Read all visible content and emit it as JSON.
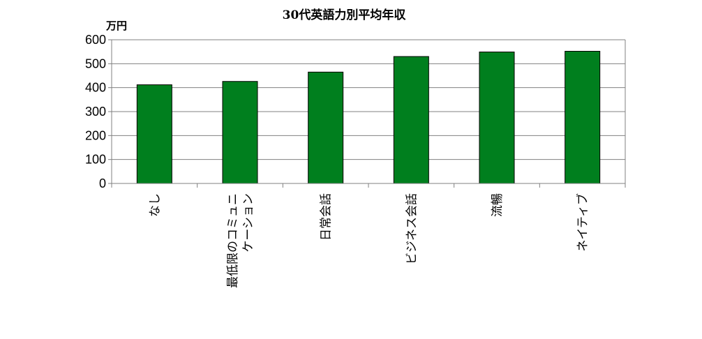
{
  "chart_data": {
    "type": "bar",
    "title": "30代英語力別平均年収",
    "unit_label": "万円",
    "categories": [
      "なし",
      "最低限のコミュニケーション",
      "日常会話",
      "ビジネス会話",
      "流暢",
      "ネイティブ"
    ],
    "category_lines": [
      [
        "なし"
      ],
      [
        "最低限のコミュニ",
        "ケーション"
      ],
      [
        "日常会話"
      ],
      [
        "ビジネス会話"
      ],
      [
        "流暢"
      ],
      [
        "ネイティブ"
      ]
    ],
    "values": [
      412,
      426,
      465,
      530,
      549,
      552
    ],
    "ylim": [
      0,
      600
    ],
    "yticks": [
      0,
      100,
      200,
      300,
      400,
      500,
      600
    ],
    "grid": true,
    "legend": "none",
    "bar_color": "#007f1e"
  }
}
